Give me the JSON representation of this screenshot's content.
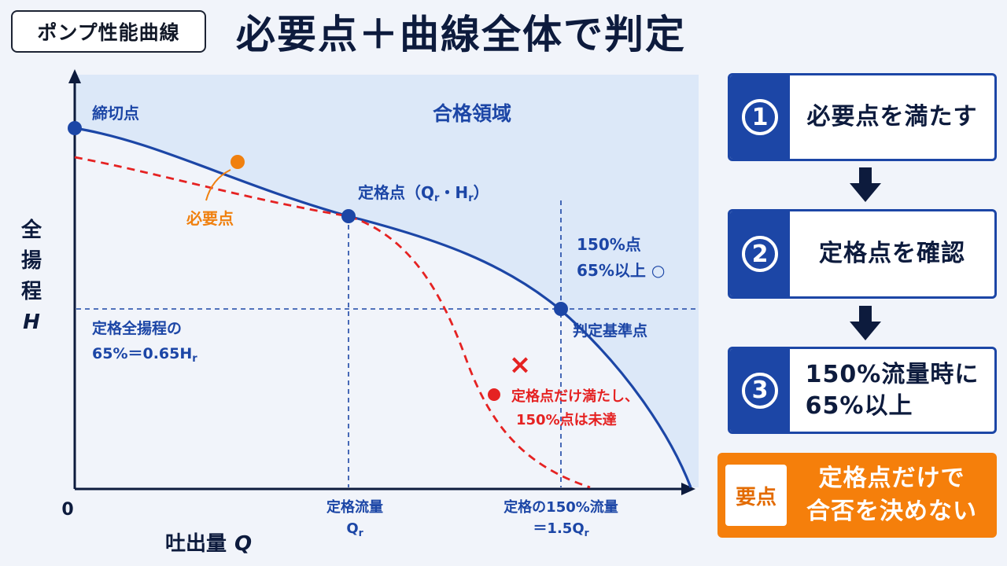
{
  "header": {
    "tag": "ポンプ性能曲線",
    "title": "必要点＋曲線全体で判定"
  },
  "chart": {
    "y_axis_label_chars": [
      "全",
      "揚",
      "程"
    ],
    "y_axis_symbol": "H",
    "x_axis_label": "吐出量",
    "x_axis_symbol": "Q",
    "origin_label": "0",
    "pass_region_label": "合格領域",
    "shutoff_label": "締切点",
    "required_point_label": "必要点",
    "rated_point_label": "定格点（Q",
    "rated_point_sub_q": "r",
    "rated_point_mid": "・H",
    "rated_point_sub_h": "r",
    "rated_point_end": "）",
    "p150_line1": "150%点",
    "p150_line2": "65%以上 ○",
    "criterion_label": "判定基準点",
    "h65_line1": "定格全揚程の",
    "h65_line2": "65%＝0.65H",
    "h65_sub": "r",
    "fail_mark": "×",
    "fail_line1": "定格点だけ満たし、",
    "fail_line2": "150%点は未達",
    "x_tick_rated_line1": "定格流量",
    "x_tick_rated_line2": "Q",
    "x_tick_rated_sub": "r",
    "x_tick_150_line1": "定格の150%流量",
    "x_tick_150_line2": "＝1.5Q",
    "x_tick_150_sub": "r",
    "colors": {
      "navy": "#1c46a6",
      "red": "#e52222",
      "orange": "#f0800f",
      "region": "#dce8f8"
    }
  },
  "steps": [
    {
      "num": "1",
      "text": "必要点を満たす"
    },
    {
      "num": "2",
      "text": "定格点を確認"
    },
    {
      "num": "3",
      "line1": "150%流量時に",
      "line2": "65%以上"
    }
  ],
  "key": {
    "badge": "要点",
    "line1": "定格点だけで",
    "line2": "合否を決めない"
  }
}
